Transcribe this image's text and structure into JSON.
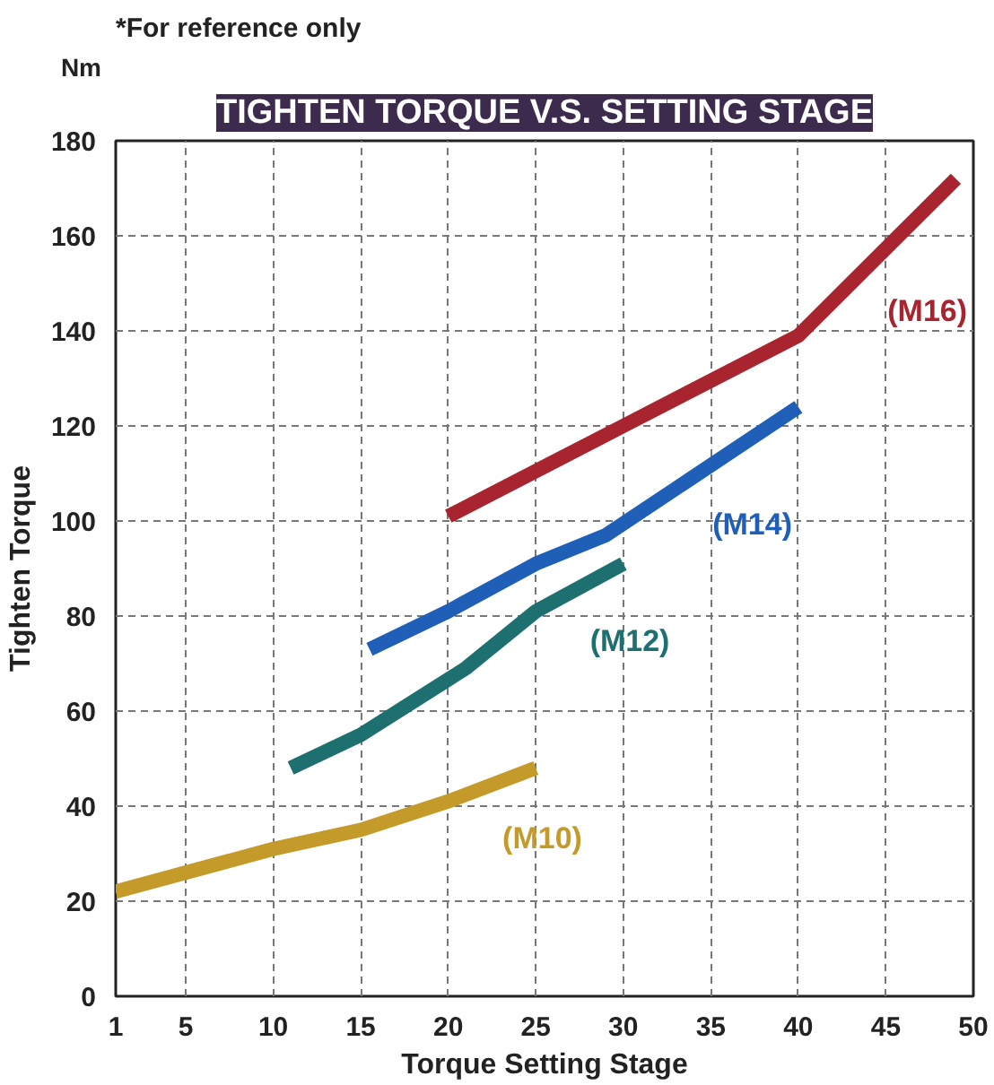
{
  "chart_data": {
    "type": "line",
    "title": "TIGHTEN TORQUE V.S. SETTING STAGE",
    "xlabel": "Torque Setting Stage",
    "ylabel": "Tighten Torque",
    "annotations": [
      "*For reference only",
      "Nm"
    ],
    "xlim": [
      1,
      50
    ],
    "xticks": [
      1,
      5,
      10,
      15,
      20,
      25,
      30,
      35,
      40,
      45,
      50
    ],
    "ylim": [
      0,
      180
    ],
    "yticks": [
      0,
      20,
      40,
      60,
      80,
      100,
      120,
      140,
      160,
      180
    ],
    "grid": true,
    "legend": false,
    "marker": "none",
    "line_style": "solid",
    "series": [
      {
        "name": "(M16)",
        "color": "#a8252f",
        "x": [
          20,
          30,
          40,
          49
        ],
        "values": [
          101,
          120,
          139,
          172
        ]
      },
      {
        "name": "(M14)",
        "color": "#1f5fb8",
        "x": [
          15.5,
          20,
          25,
          29,
          40
        ],
        "values": [
          73,
          81,
          91,
          97,
          124
        ]
      },
      {
        "name": "(M12)",
        "color": "#1e6f6f",
        "x": [
          11,
          15,
          21,
          25,
          30
        ],
        "values": [
          48,
          55,
          69,
          81,
          91
        ]
      },
      {
        "name": "(M10)",
        "color": "#c49a2a",
        "x": [
          1,
          10,
          15,
          20,
          25
        ],
        "values": [
          22,
          31,
          35,
          41,
          48
        ]
      }
    ]
  }
}
